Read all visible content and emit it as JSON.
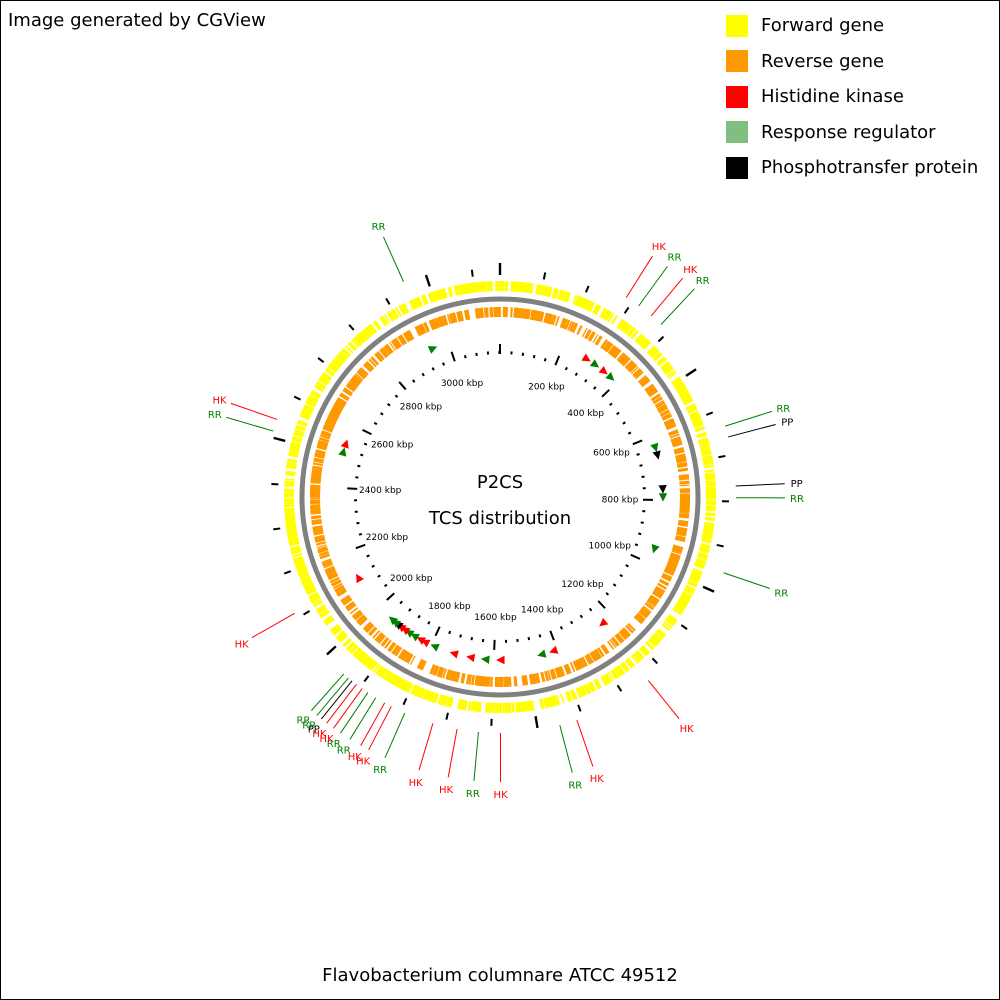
{
  "credit": "Image generated by CGView",
  "title_line1": "P2CS",
  "title_line2": "TCS distribution",
  "organism": "Flavobacterium columnare ATCC 49512",
  "legend": [
    {
      "label": "Forward gene",
      "color": "#ffff00"
    },
    {
      "label": "Reverse gene",
      "color": "#ff9900"
    },
    {
      "label": "Histidine kinase",
      "color": "#ff0000"
    },
    {
      "label": "Response regulator",
      "color": "#7fbf7f"
    },
    {
      "label": "Phosphotransfer protein",
      "color": "#000000"
    }
  ],
  "colors": {
    "forward": "#ffff00",
    "reverse": "#ff9900",
    "HK": "#ff0000",
    "RR": "#008000",
    "PP": "#000000",
    "backbone": "#808080"
  },
  "genome": {
    "length_kbp": 3162,
    "tick_labels": [
      {
        "kbp": 200,
        "label": "200 kbp"
      },
      {
        "kbp": 400,
        "label": "400 kbp"
      },
      {
        "kbp": 600,
        "label": "600 kbp"
      },
      {
        "kbp": 800,
        "label": "800 kbp"
      },
      {
        "kbp": 1000,
        "label": "1000 kbp"
      },
      {
        "kbp": 1200,
        "label": "1200 kbp"
      },
      {
        "kbp": 1400,
        "label": "1400 kbp"
      },
      {
        "kbp": 1600,
        "label": "1600 kbp"
      },
      {
        "kbp": 1800,
        "label": "1800 kbp"
      },
      {
        "kbp": 2000,
        "label": "2000 kbp"
      },
      {
        "kbp": 2200,
        "label": "2200 kbp"
      },
      {
        "kbp": 2400,
        "label": "2400 kbp"
      },
      {
        "kbp": 2600,
        "label": "2600 kbp"
      },
      {
        "kbp": 2800,
        "label": "2800 kbp"
      },
      {
        "kbp": 3000,
        "label": "3000 kbp"
      }
    ]
  },
  "features": [
    {
      "type": "HK",
      "label": "HK",
      "kbp": 284
    },
    {
      "type": "RR",
      "label": "RR",
      "kbp": 316
    },
    {
      "type": "HK",
      "label": "HK",
      "kbp": 350
    },
    {
      "type": "RR",
      "label": "RR",
      "kbp": 378
    },
    {
      "type": "RR",
      "label": "RR",
      "kbp": 637
    },
    {
      "type": "PP",
      "label": "PP",
      "kbp": 661
    },
    {
      "type": "PP",
      "label": "PP",
      "kbp": 767
    },
    {
      "type": "RR",
      "label": "RR",
      "kbp": 792
    },
    {
      "type": "RR",
      "label": "RR",
      "kbp": 955
    },
    {
      "type": "HK",
      "label": "HK",
      "kbp": 1239
    },
    {
      "type": "HK",
      "label": "HK",
      "kbp": 1414
    },
    {
      "type": "RR",
      "label": "RR",
      "kbp": 1452
    },
    {
      "type": "HK",
      "label": "HK",
      "kbp": 1580
    },
    {
      "type": "RR",
      "label": "RR",
      "kbp": 1627
    },
    {
      "type": "HK",
      "label": "HK",
      "kbp": 1673
    },
    {
      "type": "HK",
      "label": "HK",
      "kbp": 1726
    },
    {
      "type": "RR",
      "label": "RR",
      "kbp": 1790
    },
    {
      "type": "HK",
      "label": "HK",
      "kbp": 1822
    },
    {
      "type": "HK",
      "label": "HK",
      "kbp": 1838
    },
    {
      "type": "RR",
      "label": "RR",
      "kbp": 1860
    },
    {
      "type": "RR",
      "label": "RR",
      "kbp": 1880
    },
    {
      "type": "HK",
      "label": "HK",
      "kbp": 1895
    },
    {
      "type": "HK",
      "label": "HK",
      "kbp": 1910
    },
    {
      "type": "PP",
      "label": "PP",
      "kbp": 1922
    },
    {
      "type": "RR",
      "label": "RR",
      "kbp": 1932
    },
    {
      "type": "RR",
      "label": "RR",
      "kbp": 1945
    },
    {
      "type": "HK",
      "label": "HK",
      "kbp": 2112
    },
    {
      "type": "RR",
      "label": "RR",
      "kbp": 2514
    },
    {
      "type": "HK",
      "label": "HK",
      "kbp": 2540
    },
    {
      "type": "RR",
      "label": "RR",
      "kbp": 2950
    }
  ]
}
